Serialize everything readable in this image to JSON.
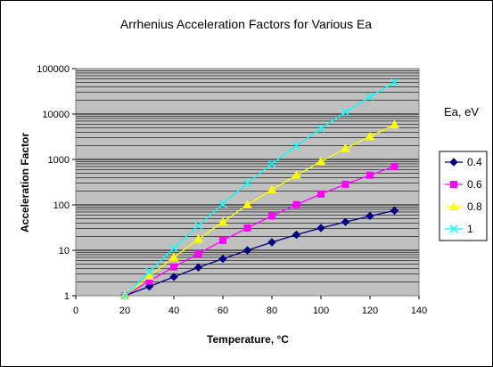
{
  "chart_data": {
    "type": "line",
    "title": "Arrhenius Acceleration Factors for Various Ea",
    "xlabel": "Temperature, °C",
    "ylabel": "Acceleration Factor",
    "xlim": [
      0,
      140
    ],
    "ylim": [
      1,
      100000
    ],
    "yscale": "log",
    "xticks": [
      0,
      20,
      40,
      60,
      80,
      100,
      120,
      140
    ],
    "xtick_labels": [
      "0",
      "20",
      "40",
      "60",
      "80",
      "100",
      "120",
      "140"
    ],
    "yticks": [
      1,
      10,
      100,
      1000,
      10000,
      100000
    ],
    "ytick_labels": [
      "1",
      "10",
      "100",
      "1000",
      "10000",
      "100000"
    ],
    "grid": true,
    "plot_background": "#c0c0c0",
    "legend_title": "Ea, eV",
    "legend_position": "right",
    "x": [
      20,
      30,
      40,
      50,
      60,
      70,
      80,
      90,
      100,
      110,
      120,
      130
    ],
    "series": [
      {
        "name": "0.4",
        "color": "#000080",
        "marker": "diamond",
        "values": [
          1,
          1.6,
          2.6,
          4.2,
          6.5,
          10,
          15,
          22,
          31,
          42,
          57,
          75
        ]
      },
      {
        "name": "0.6",
        "color": "#ff00ff",
        "marker": "square",
        "values": [
          1,
          2.1,
          4.3,
          8.4,
          16.5,
          31,
          57,
          101,
          173,
          284,
          450,
          700
        ]
      },
      {
        "name": "0.8",
        "color": "#ffff00",
        "marker": "triangle",
        "values": [
          1,
          2.7,
          7,
          17.5,
          42,
          100,
          215,
          450,
          900,
          1750,
          3200,
          5800
        ]
      },
      {
        "name": "1",
        "color": "#00ffff",
        "marker": "x",
        "values": [
          1,
          3.4,
          11.2,
          35,
          105,
          300,
          800,
          2000,
          4800,
          11000,
          24000,
          50000
        ]
      }
    ]
  }
}
